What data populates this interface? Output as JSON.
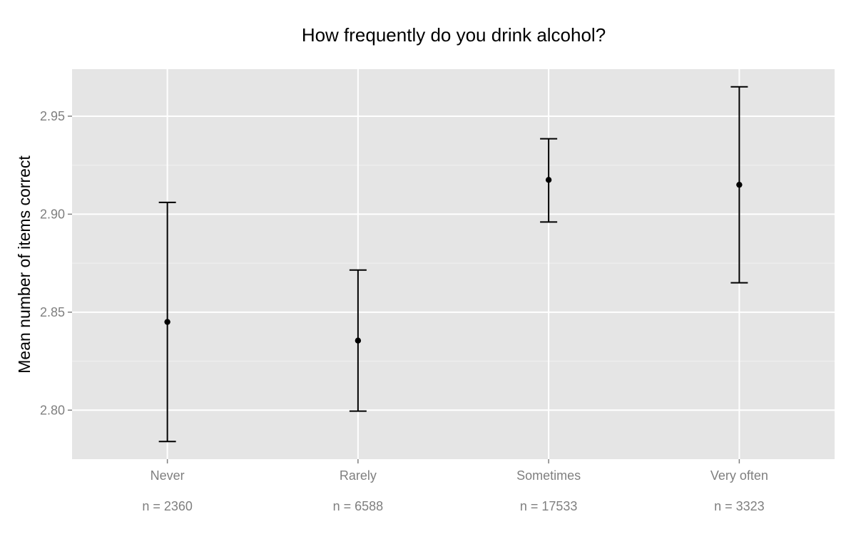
{
  "chart_data": {
    "type": "scatter",
    "subtype": "point-with-error-bars",
    "title": "How frequently do you drink alcohol?",
    "xlabel": "",
    "ylabel": "Mean number of items correct",
    "categories": [
      "Never",
      "Rarely",
      "Sometimes",
      "Very often"
    ],
    "sample_sizes": [
      "n = 2360",
      "n = 6588",
      "n = 17533",
      "n = 3323"
    ],
    "points": [
      {
        "category": "Never",
        "mean": 2.845,
        "lower": 2.784,
        "upper": 2.906
      },
      {
        "category": "Rarely",
        "mean": 2.8355,
        "lower": 2.7995,
        "upper": 2.8715
      },
      {
        "category": "Sometimes",
        "mean": 2.9175,
        "lower": 2.896,
        "upper": 2.9385
      },
      {
        "category": "Very often",
        "mean": 2.915,
        "lower": 2.865,
        "upper": 2.965
      }
    ],
    "ylim": [
      2.775,
      2.974
    ],
    "y_ticks": [
      "2.80",
      "2.85",
      "2.90",
      "2.95"
    ],
    "y_tick_values": [
      2.8,
      2.85,
      2.9,
      2.95
    ],
    "grid": true,
    "legend": "none",
    "colors": {
      "panel_background": "#e5e5e5",
      "grid_major": "#ffffff",
      "grid_minor": "#f2f2f2",
      "points": "#000000",
      "tick_text": "#7f7f7f"
    }
  }
}
